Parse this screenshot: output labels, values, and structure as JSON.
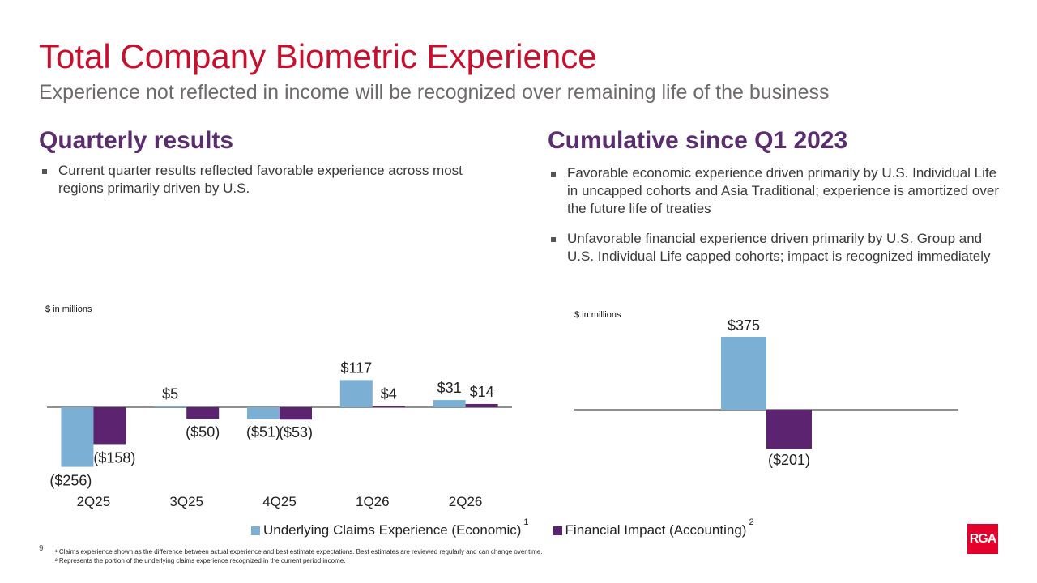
{
  "title": "Total Company Biometric Experience",
  "subtitle": "Experience not reflected in income will be recognized over remaining life of the business",
  "left": {
    "heading": "Quarterly results",
    "bullets": [
      "Current quarter results reflected favorable experience across most regions primarily driven by U.S."
    ],
    "units": "$ in millions"
  },
  "right": {
    "heading": "Cumulative since Q1 2023",
    "bullets": [
      "Favorable economic experience driven primarily by U.S. Individual Life in uncapped cohorts and Asia Traditional; experience is amortized over the future life of treaties",
      "Unfavorable financial experience driven primarily by U.S. Group and U.S. Individual Life capped cohorts; impact is recognized immediately"
    ],
    "units": "$ in millions"
  },
  "colors": {
    "economic": "#7bafd4",
    "accounting": "#5b2370",
    "title": "#c8102e",
    "heading": "#5a2d6f"
  },
  "chart_data": [
    {
      "type": "bar",
      "categories": [
        "2Q25",
        "3Q25",
        "4Q25",
        "1Q26",
        "2Q26"
      ],
      "series": [
        {
          "name": "Underlying Claims Experience (Economic)",
          "values": [
            -256,
            5,
            -51,
            117,
            31
          ],
          "labels": [
            "($256)",
            "$5",
            "($51)",
            "$117",
            "$31"
          ]
        },
        {
          "name": "Financial Impact (Accounting)",
          "values": [
            -158,
            -50,
            -53,
            4,
            14
          ],
          "labels": [
            "($158)",
            "($50)",
            "($53)",
            "$4",
            "$14"
          ]
        }
      ],
      "ylabel": "$ in millions"
    },
    {
      "type": "bar",
      "categories": [
        ""
      ],
      "series": [
        {
          "name": "Underlying Claims Experience (Economic)",
          "values": [
            375
          ],
          "labels": [
            "$375"
          ]
        },
        {
          "name": "Financial Impact (Accounting)",
          "values": [
            -201
          ],
          "labels": [
            "($201)"
          ]
        }
      ],
      "ylabel": "$ in millions"
    }
  ],
  "legend": {
    "items": [
      {
        "label": "Underlying Claims Experience (Economic)",
        "sup": "1"
      },
      {
        "label": "Financial Impact (Accounting)",
        "sup": "2"
      }
    ]
  },
  "page_number": "9",
  "footnotes": [
    "¹ Claims experience shown as the difference between actual experience and best estimate expectations. Best estimates are reviewed regularly and can change over time.",
    "² Represents the portion of the underlying claims experience recognized in the current period income."
  ],
  "logo_text": "RGA"
}
